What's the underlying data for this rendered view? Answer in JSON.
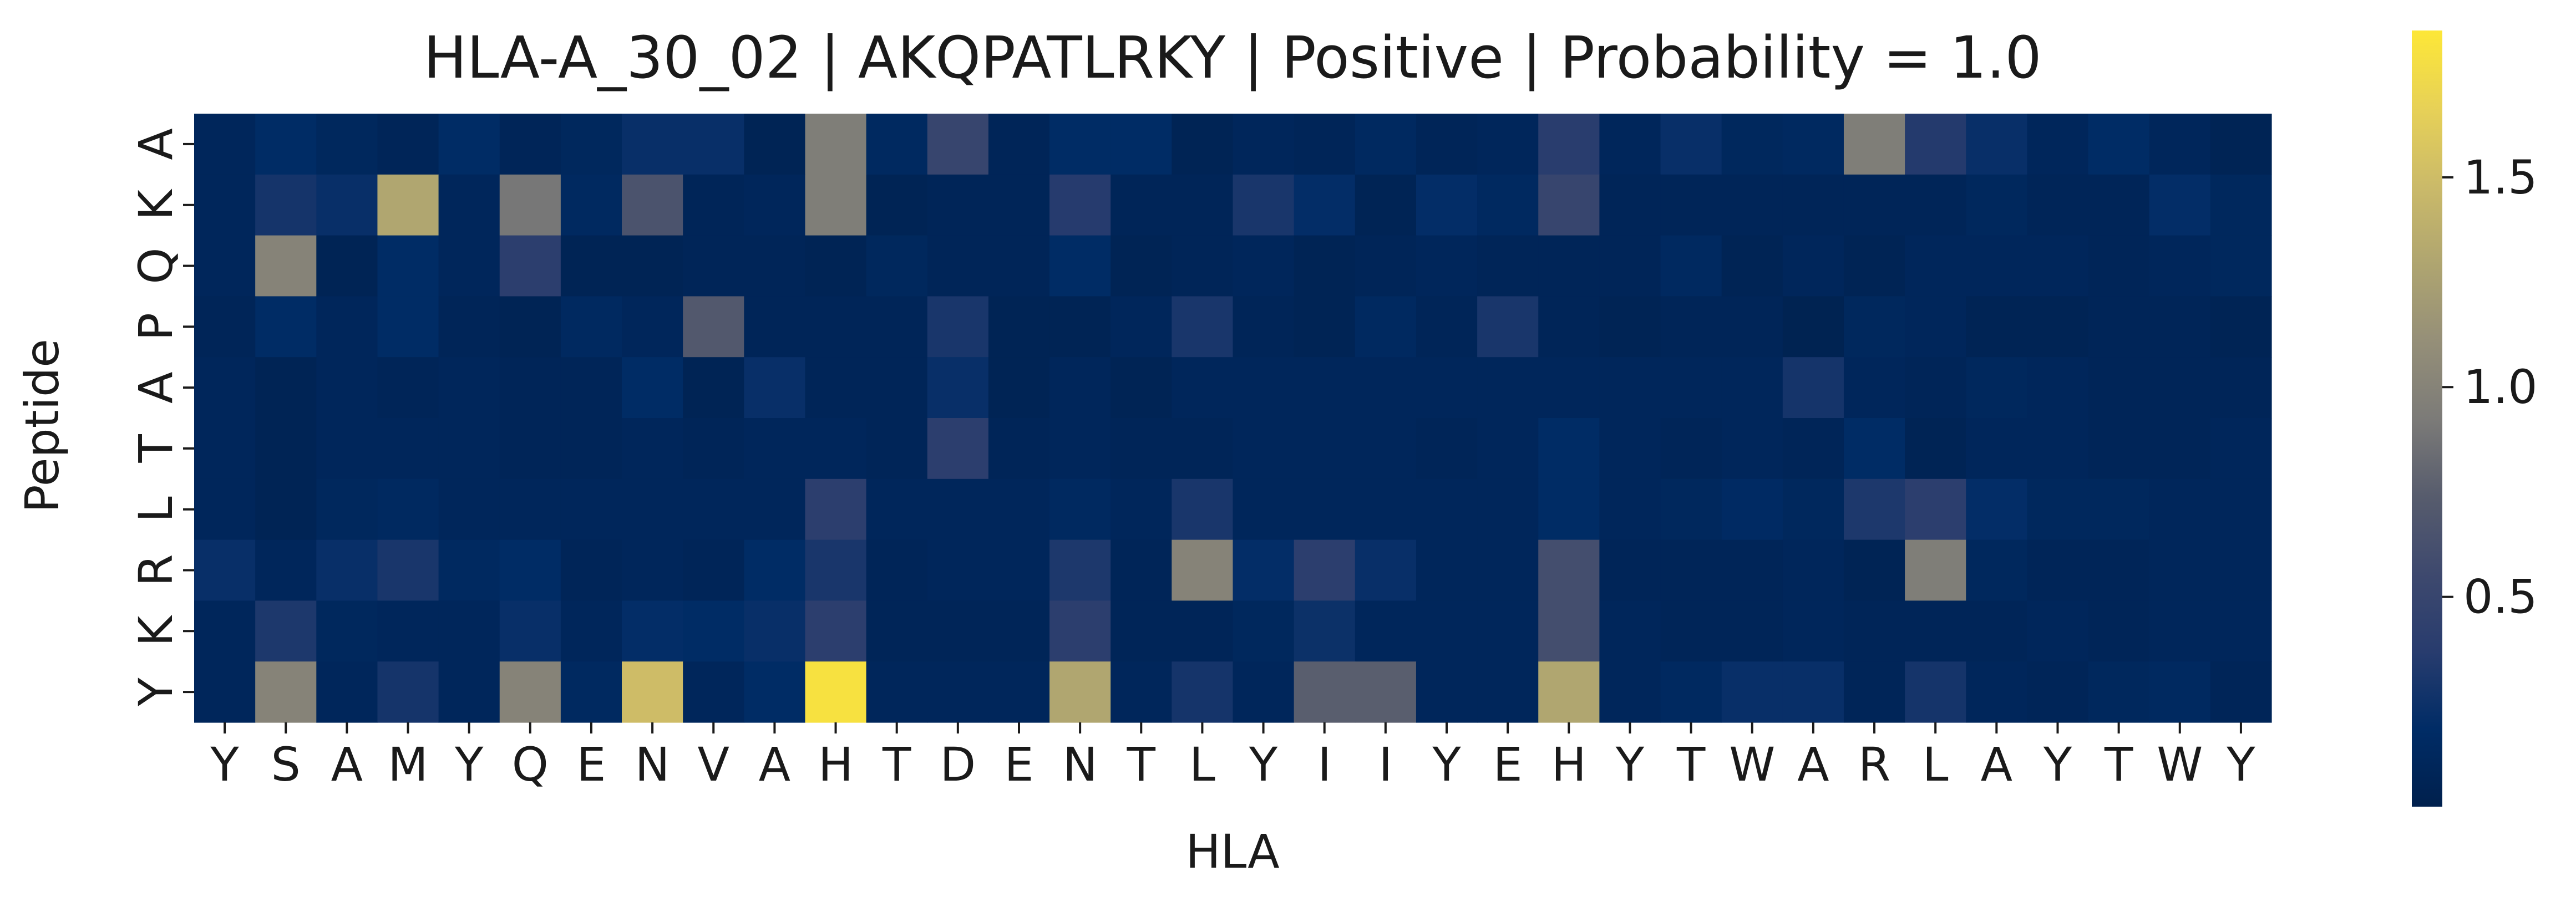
{
  "chart_data": {
    "type": "heatmap",
    "title": "HLA-A_30_02 | AKQPATLRKY | Positive | Probability = 1.0",
    "xlabel": "HLA",
    "ylabel": "Peptide",
    "x_categories": [
      "Y",
      "S",
      "A",
      "M",
      "Y",
      "Q",
      "E",
      "N",
      "V",
      "A",
      "H",
      "T",
      "D",
      "E",
      "N",
      "T",
      "L",
      "Y",
      "I",
      "I",
      "Y",
      "E",
      "H",
      "Y",
      "T",
      "W",
      "A",
      "R",
      "L",
      "A",
      "Y",
      "T",
      "W",
      "Y"
    ],
    "y_categories": [
      "A",
      "K",
      "Q",
      "P",
      "A",
      "T",
      "L",
      "R",
      "K",
      "Y"
    ],
    "values": [
      [
        0.1,
        0.18,
        0.12,
        0.08,
        0.18,
        0.08,
        0.12,
        0.22,
        0.22,
        0.06,
        0.95,
        0.14,
        0.5,
        0.08,
        0.18,
        0.18,
        0.06,
        0.1,
        0.08,
        0.14,
        0.08,
        0.1,
        0.38,
        0.1,
        0.22,
        0.12,
        0.14,
        0.95,
        0.35,
        0.22,
        0.1,
        0.18,
        0.1,
        0.06
      ],
      [
        0.1,
        0.28,
        0.22,
        1.3,
        0.1,
        0.9,
        0.14,
        0.65,
        0.08,
        0.1,
        0.95,
        0.06,
        0.08,
        0.08,
        0.36,
        0.08,
        0.08,
        0.3,
        0.2,
        0.06,
        0.2,
        0.14,
        0.5,
        0.08,
        0.08,
        0.08,
        0.08,
        0.08,
        0.08,
        0.12,
        0.08,
        0.08,
        0.2,
        0.12
      ],
      [
        0.1,
        1.0,
        0.06,
        0.18,
        0.1,
        0.4,
        0.06,
        0.06,
        0.08,
        0.08,
        0.06,
        0.12,
        0.08,
        0.08,
        0.18,
        0.06,
        0.08,
        0.1,
        0.06,
        0.08,
        0.1,
        0.08,
        0.08,
        0.08,
        0.14,
        0.06,
        0.1,
        0.06,
        0.1,
        0.1,
        0.1,
        0.08,
        0.1,
        0.12
      ],
      [
        0.08,
        0.18,
        0.1,
        0.18,
        0.08,
        0.06,
        0.14,
        0.1,
        0.7,
        0.08,
        0.08,
        0.08,
        0.3,
        0.06,
        0.06,
        0.1,
        0.3,
        0.08,
        0.06,
        0.14,
        0.08,
        0.3,
        0.08,
        0.06,
        0.08,
        0.08,
        0.04,
        0.12,
        0.1,
        0.06,
        0.06,
        0.08,
        0.08,
        0.06
      ],
      [
        0.1,
        0.06,
        0.1,
        0.08,
        0.1,
        0.08,
        0.08,
        0.18,
        0.06,
        0.22,
        0.08,
        0.08,
        0.22,
        0.06,
        0.1,
        0.06,
        0.1,
        0.1,
        0.1,
        0.1,
        0.1,
        0.1,
        0.1,
        0.1,
        0.1,
        0.1,
        0.28,
        0.1,
        0.08,
        0.12,
        0.1,
        0.08,
        0.08,
        0.08
      ],
      [
        0.1,
        0.06,
        0.1,
        0.1,
        0.1,
        0.08,
        0.08,
        0.1,
        0.08,
        0.1,
        0.1,
        0.08,
        0.4,
        0.08,
        0.1,
        0.08,
        0.08,
        0.1,
        0.1,
        0.1,
        0.08,
        0.1,
        0.18,
        0.1,
        0.08,
        0.1,
        0.08,
        0.18,
        0.06,
        0.1,
        0.1,
        0.08,
        0.08,
        0.1
      ],
      [
        0.1,
        0.06,
        0.12,
        0.14,
        0.1,
        0.1,
        0.1,
        0.1,
        0.1,
        0.1,
        0.4,
        0.1,
        0.1,
        0.1,
        0.14,
        0.1,
        0.3,
        0.1,
        0.1,
        0.1,
        0.1,
        0.1,
        0.18,
        0.1,
        0.12,
        0.16,
        0.12,
        0.32,
        0.4,
        0.2,
        0.12,
        0.12,
        0.1,
        0.1
      ],
      [
        0.22,
        0.1,
        0.22,
        0.3,
        0.14,
        0.18,
        0.08,
        0.1,
        0.08,
        0.18,
        0.3,
        0.08,
        0.1,
        0.1,
        0.32,
        0.08,
        1.0,
        0.2,
        0.4,
        0.22,
        0.1,
        0.1,
        0.6,
        0.08,
        0.08,
        0.08,
        0.1,
        0.06,
        0.95,
        0.12,
        0.08,
        0.08,
        0.1,
        0.1
      ],
      [
        0.1,
        0.32,
        0.12,
        0.1,
        0.1,
        0.22,
        0.1,
        0.2,
        0.18,
        0.22,
        0.4,
        0.08,
        0.08,
        0.08,
        0.4,
        0.08,
        0.08,
        0.12,
        0.24,
        0.1,
        0.1,
        0.1,
        0.6,
        0.1,
        0.08,
        0.08,
        0.1,
        0.08,
        0.08,
        0.08,
        0.1,
        0.08,
        0.1,
        0.1
      ],
      [
        0.1,
        1.0,
        0.1,
        0.28,
        0.1,
        1.0,
        0.14,
        1.5,
        0.1,
        0.18,
        1.8,
        0.1,
        0.1,
        0.1,
        1.3,
        0.1,
        0.28,
        0.1,
        0.75,
        0.75,
        0.1,
        0.1,
        1.3,
        0.1,
        0.14,
        0.22,
        0.22,
        0.08,
        0.28,
        0.1,
        0.08,
        0.12,
        0.14,
        0.08
      ]
    ],
    "colormap": "cividis",
    "vmin": 0.0,
    "vmax": 1.85,
    "colorbar_ticks": [
      0.5,
      1.0,
      1.5
    ],
    "colorbar_tick_labels": [
      "0.5",
      "1.0",
      "1.5"
    ],
    "grid": false,
    "colorbar_placement": "right"
  }
}
